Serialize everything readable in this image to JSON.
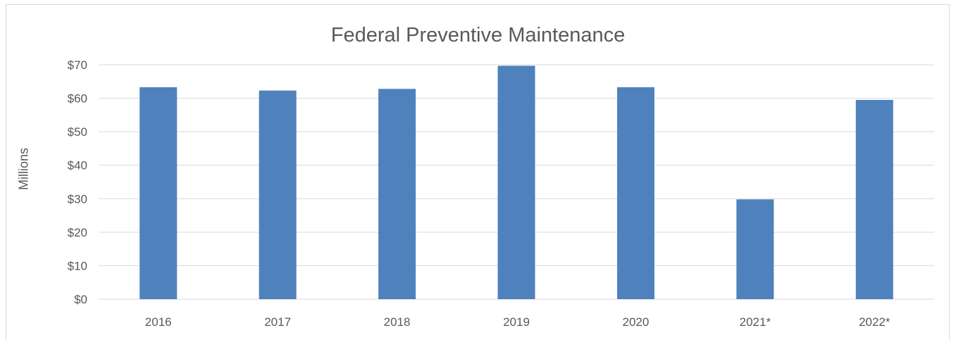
{
  "chart_data": {
    "type": "bar",
    "title": "Federal Preventive Maintenance",
    "xlabel": "",
    "ylabel": "Millions",
    "categories": [
      "2016",
      "2017",
      "2018",
      "2019",
      "2020",
      "2021*",
      "2022*"
    ],
    "values": [
      63.3,
      62.3,
      62.8,
      69.7,
      63.3,
      29.8,
      59.5
    ],
    "ylim": [
      0,
      70
    ],
    "yticks": [
      0,
      10,
      20,
      30,
      40,
      50,
      60,
      70
    ],
    "ytick_labels": [
      "$0",
      "$10",
      "$20",
      "$30",
      "$40",
      "$50",
      "$60",
      "$70"
    ],
    "grid": true,
    "legend": "none",
    "bar_color": "#4f81bd",
    "grid_color": "#d9d9d9",
    "text_color": "#595959"
  }
}
